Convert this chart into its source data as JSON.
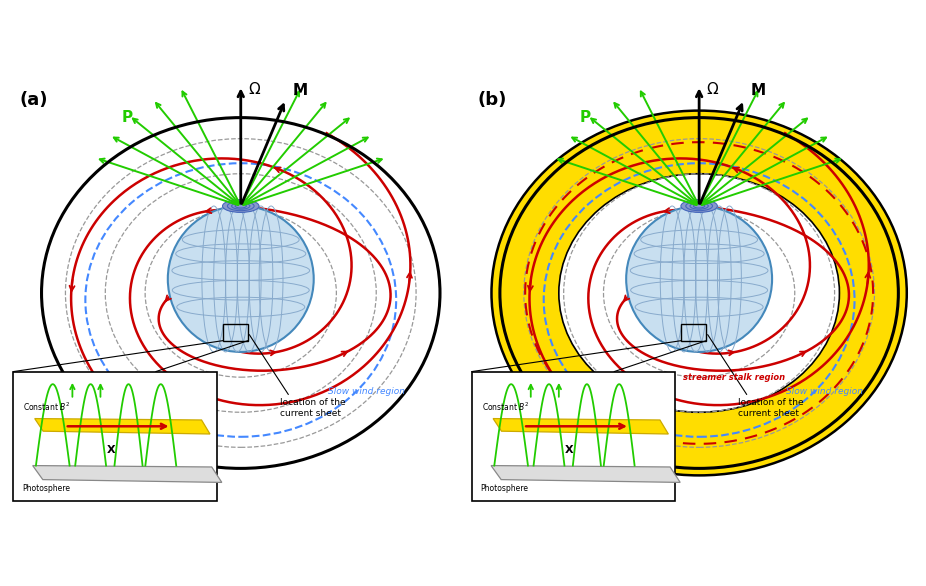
{
  "bg_color": "#ffffff",
  "green": "#22cc00",
  "red": "#cc0000",
  "orange_red": "#dd3300",
  "blue_dashed": "#4488ff",
  "yellow": "#ffdd00",
  "sun_face": "#c8dff0",
  "sun_edge": "#4488bb",
  "sun_grid": "#88aacc",
  "polar_blue": "#4466bb",
  "gray_dashed": "#999999",
  "black": "#000000",
  "panel_a": "(a)",
  "panel_b": "(b)",
  "slow_wind": "Slow wind region",
  "streamer": "streamer stalk region",
  "loc_current": "location of the\ncurrent sheet",
  "constant_b2": "Constant B",
  "photosphere": "Photosphere"
}
